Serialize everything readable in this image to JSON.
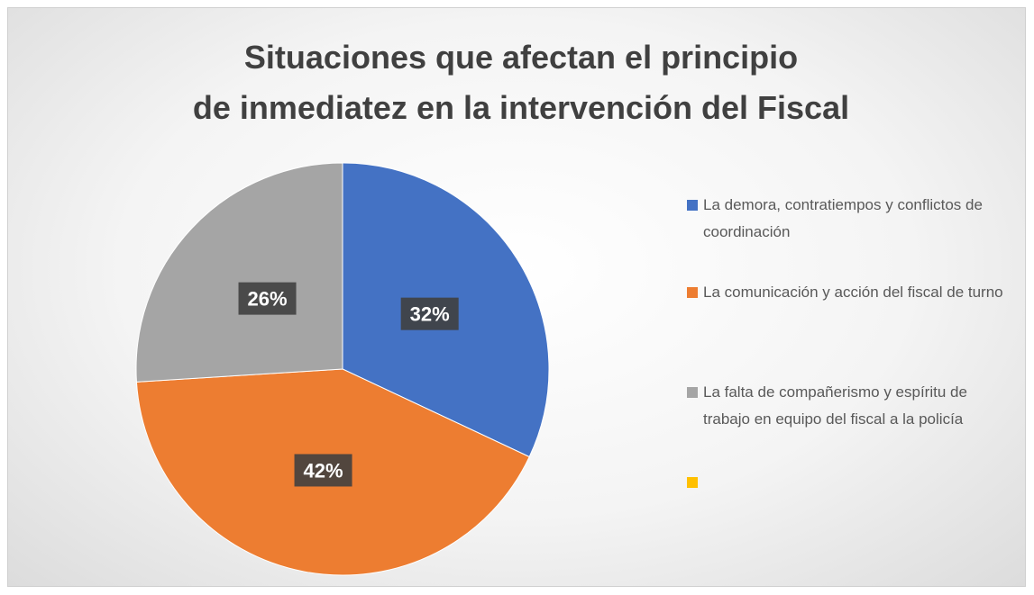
{
  "chart_data": {
    "type": "pie",
    "title": "Situaciones que afectan el principio de inmediatez en la intervención del Fiscal",
    "categories": [
      "La demora, contratiempos y conflictos de coordinación",
      "La comunicación y acción del fiscal de turno",
      "La falta de compañerismo y espíritu de trabajo en equipo del fiscal a la policía",
      null
    ],
    "values": [
      32,
      42,
      26,
      0
    ],
    "value_labels": [
      "32%",
      "42%",
      "26%",
      null
    ],
    "colors": [
      "#4472c4",
      "#ed7d31",
      "#a5a5a5",
      "#ffc000"
    ],
    "legend": "right"
  }
}
